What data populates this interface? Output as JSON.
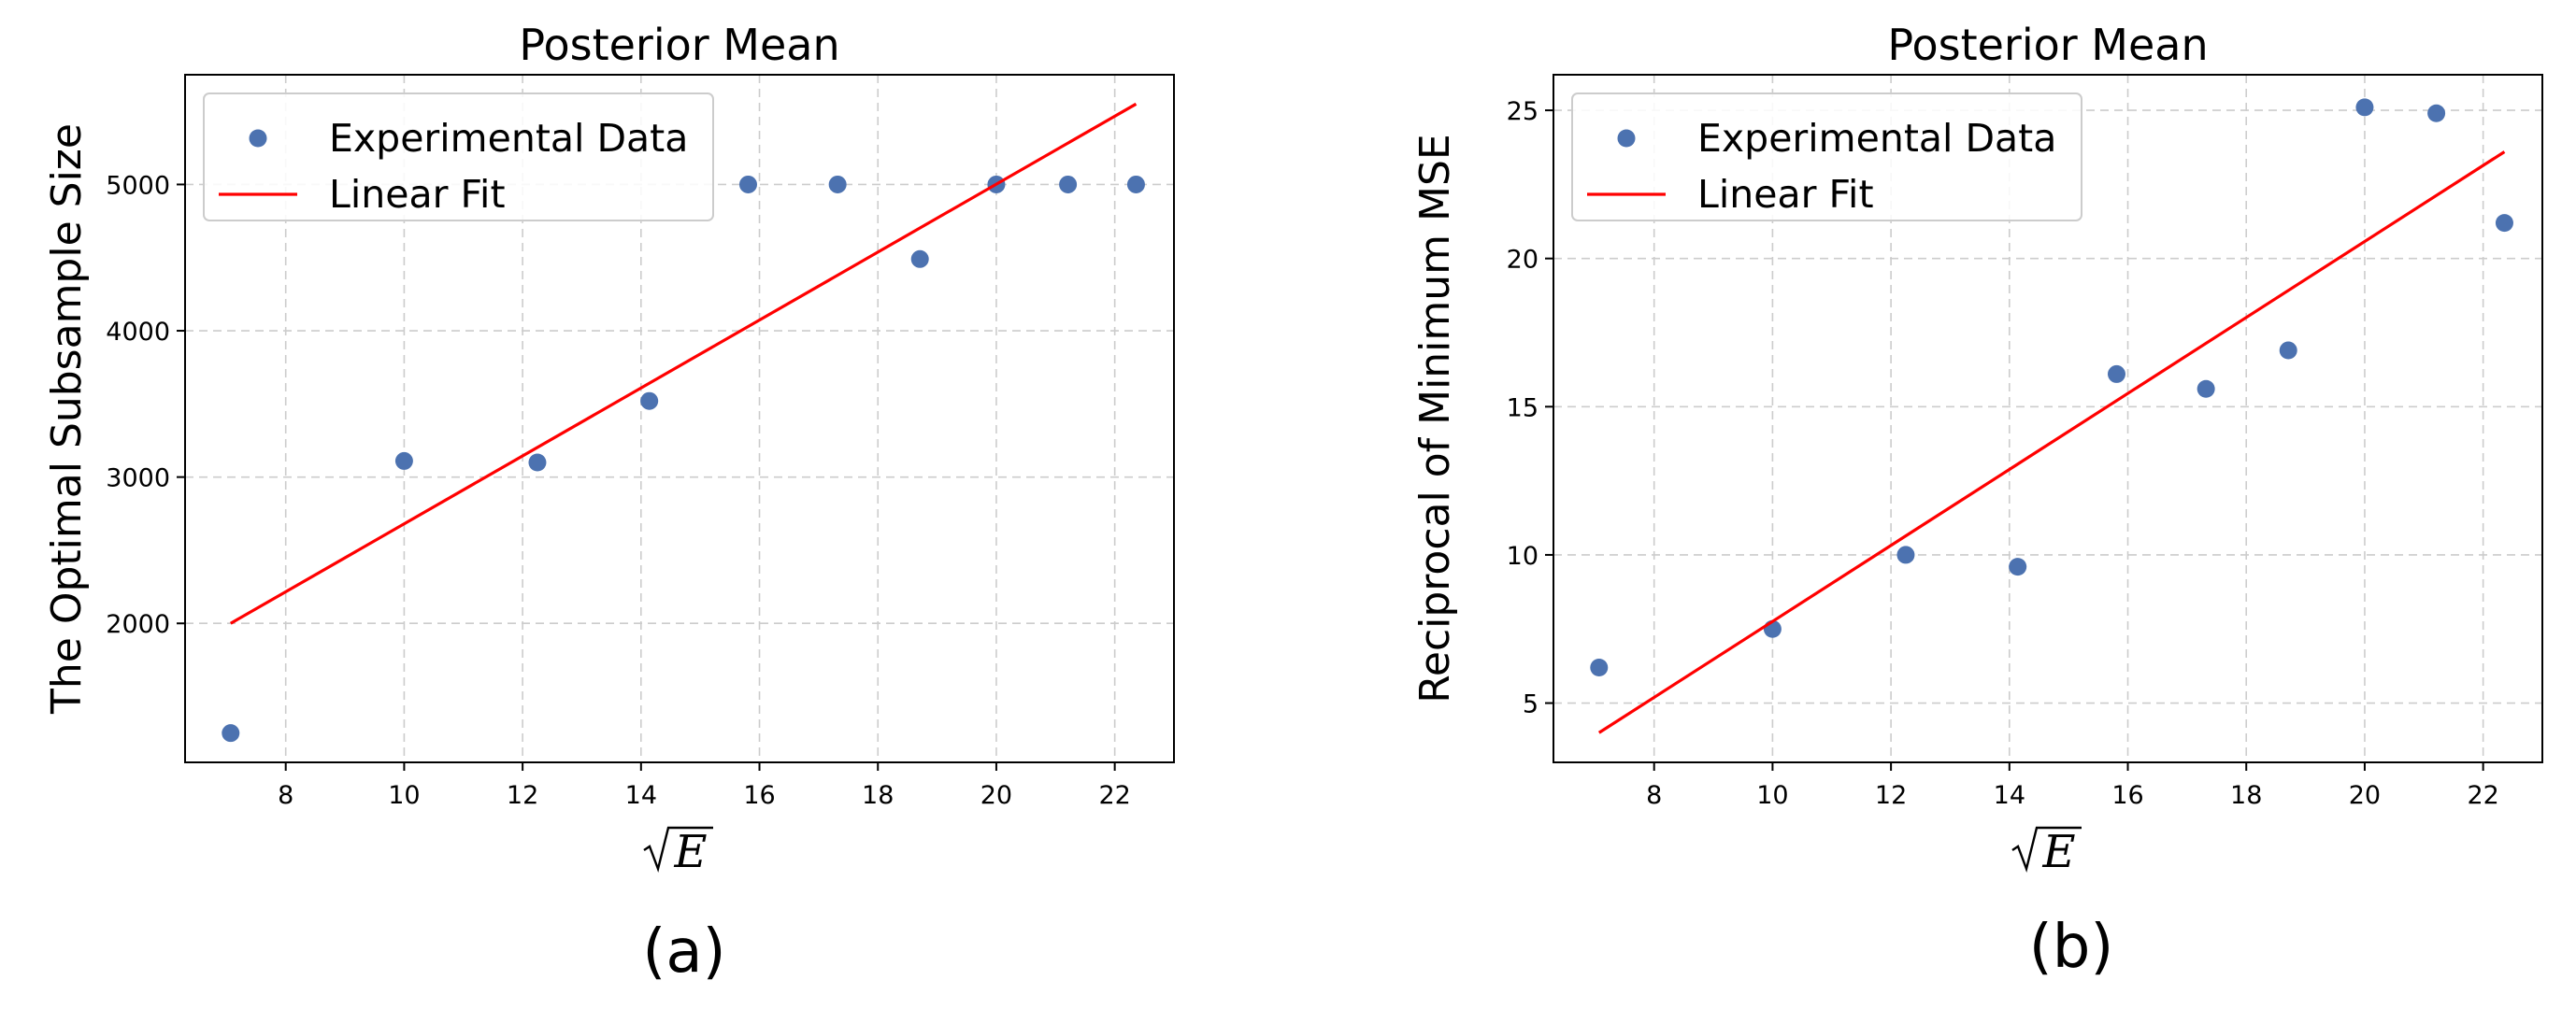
{
  "charts": [
    {
      "panel_label": "(a)",
      "x_label": "√E"
    },
    {
      "panel_label": "(b)",
      "x_label": "√E"
    }
  ],
  "chart_data": [
    {
      "type": "scatter",
      "title": "Posterior Mean",
      "xlabel": "√E",
      "ylabel": "The Optimal Subsample Size",
      "xlim": [
        6.3,
        23.0
      ],
      "ylim": [
        1050,
        5750
      ],
      "xticks": [
        8,
        10,
        12,
        14,
        16,
        18,
        20,
        22
      ],
      "yticks": [
        2000,
        3000,
        4000,
        5000
      ],
      "grid": true,
      "legend_position": "upper-left",
      "series": [
        {
          "name": "Experimental Data",
          "kind": "scatter",
          "color": "#4c72b0",
          "x": [
            7.07,
            10.0,
            12.25,
            14.14,
            15.81,
            17.32,
            18.71,
            20.0,
            21.21,
            22.36
          ],
          "y": [
            1250,
            3110,
            3100,
            3520,
            5000,
            5000,
            4490,
            5000,
            5000,
            5000
          ]
        },
        {
          "name": "Linear Fit",
          "kind": "line",
          "color": "#ff0000",
          "x": [
            7.07,
            22.36
          ],
          "y": [
            2000,
            5550
          ]
        }
      ]
    },
    {
      "type": "scatter",
      "title": "Posterior Mean",
      "xlabel": "√E",
      "ylabel": "Reciprocal of Minimum MSE",
      "xlim": [
        6.3,
        23.0
      ],
      "ylim": [
        3.0,
        26.2
      ],
      "xticks": [
        8,
        10,
        12,
        14,
        16,
        18,
        20,
        22
      ],
      "yticks": [
        5,
        10,
        15,
        20,
        25
      ],
      "grid": true,
      "legend_position": "upper-left",
      "series": [
        {
          "name": "Experimental Data",
          "kind": "scatter",
          "color": "#4c72b0",
          "x": [
            7.07,
            10.0,
            12.25,
            14.14,
            15.81,
            17.32,
            18.71,
            20.0,
            21.21,
            22.36
          ],
          "y": [
            6.2,
            7.5,
            10.0,
            9.6,
            16.1,
            15.6,
            16.9,
            25.1,
            24.9,
            21.2
          ]
        },
        {
          "name": "Linear Fit",
          "kind": "line",
          "color": "#ff0000",
          "x": [
            7.07,
            22.36
          ],
          "y": [
            4.0,
            23.6
          ]
        }
      ]
    }
  ]
}
